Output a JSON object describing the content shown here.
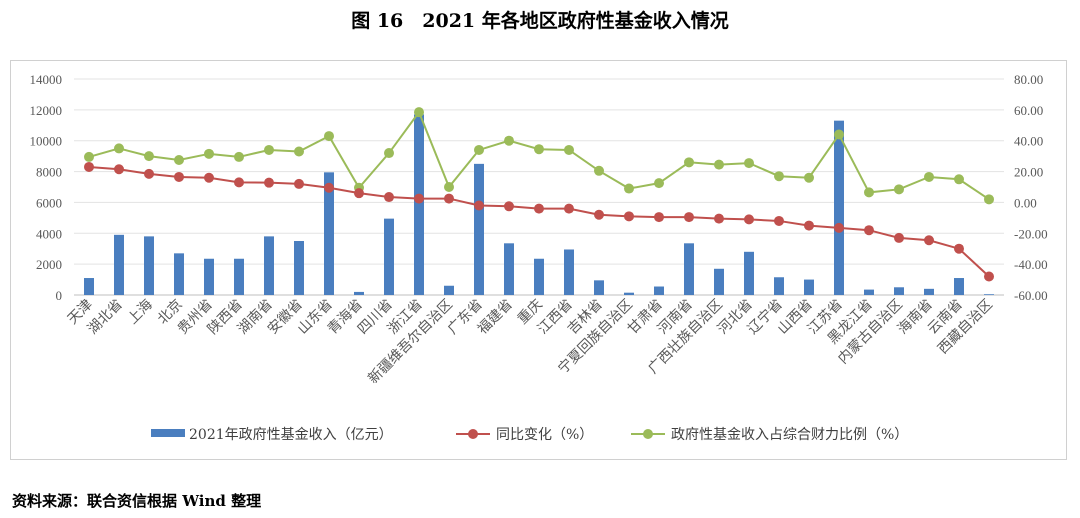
{
  "title": "图 16　2021 年各地区政府性基金收入情况",
  "source": "资料来源：联合资信根据 Wind 整理",
  "chart_data": {
    "type": "bar+line",
    "title": "图 16　2021 年各地区政府性基金收入情况",
    "categories": [
      "天津",
      "湖北省",
      "上海",
      "北京",
      "贵州省",
      "陕西省",
      "湖南省",
      "安徽省",
      "山东省",
      "青海省",
      "四川省",
      "浙江省",
      "新疆维吾尔自治区",
      "广东省",
      "福建省",
      "重庆",
      "江西省",
      "吉林省",
      "宁夏回族自治区",
      "甘肃省",
      "河南省",
      "广西壮族自治区",
      "河北省",
      "辽宁省",
      "山西省",
      "江苏省",
      "黑龙江省",
      "内蒙古自治区",
      "海南省",
      "云南省",
      "西藏自治区"
    ],
    "left_axis": {
      "range": [
        0,
        14000
      ],
      "ticks": [
        "0",
        "2000",
        "4000",
        "6000",
        "8000",
        "10000",
        "12000",
        "14000"
      ]
    },
    "right_axis": {
      "range": [
        -60,
        80
      ],
      "ticks": [
        "-60.00",
        "-40.00",
        "-20.00",
        "0.00",
        "20.00",
        "40.00",
        "60.00",
        "80.00"
      ]
    },
    "grid": true,
    "legend_position": "bottom",
    "series": [
      {
        "name": "2021年政府性基金收入（亿元）",
        "type": "bar",
        "axis": "left",
        "color": "#4a7ebf",
        "values": [
          1100,
          3900,
          3800,
          2700,
          2350,
          2350,
          3800,
          3500,
          7950,
          200,
          4950,
          11700,
          600,
          8500,
          3350,
          2350,
          2950,
          950,
          150,
          550,
          3350,
          1700,
          2800,
          1150,
          1000,
          11300,
          350,
          500,
          400,
          1100,
          50
        ]
      },
      {
        "name": "同比变化（%）",
        "type": "line",
        "axis": "right",
        "color": "#c0504d",
        "values": [
          23,
          21.5,
          18.5,
          16.5,
          16,
          13,
          12.8,
          12,
          9.5,
          6,
          3.5,
          2.5,
          2.5,
          -2,
          -2.5,
          -4,
          -4,
          -8,
          -9,
          -9.5,
          -9.5,
          -10.5,
          -11,
          -12,
          -15,
          -16.5,
          -18,
          -23,
          -24.5,
          -30,
          -48
        ]
      },
      {
        "name": "政府性基金收入占综合财力比例（%）",
        "type": "line",
        "axis": "right",
        "color": "#9bbb59",
        "values": [
          29.5,
          35,
          30,
          27.5,
          31.5,
          29.5,
          34,
          33,
          43,
          9.5,
          32,
          58.5,
          10,
          34,
          40,
          34.5,
          34,
          20.5,
          9,
          12.5,
          26,
          24.5,
          25.5,
          17,
          16,
          44,
          6.5,
          8.5,
          16.5,
          15,
          2
        ]
      }
    ]
  }
}
